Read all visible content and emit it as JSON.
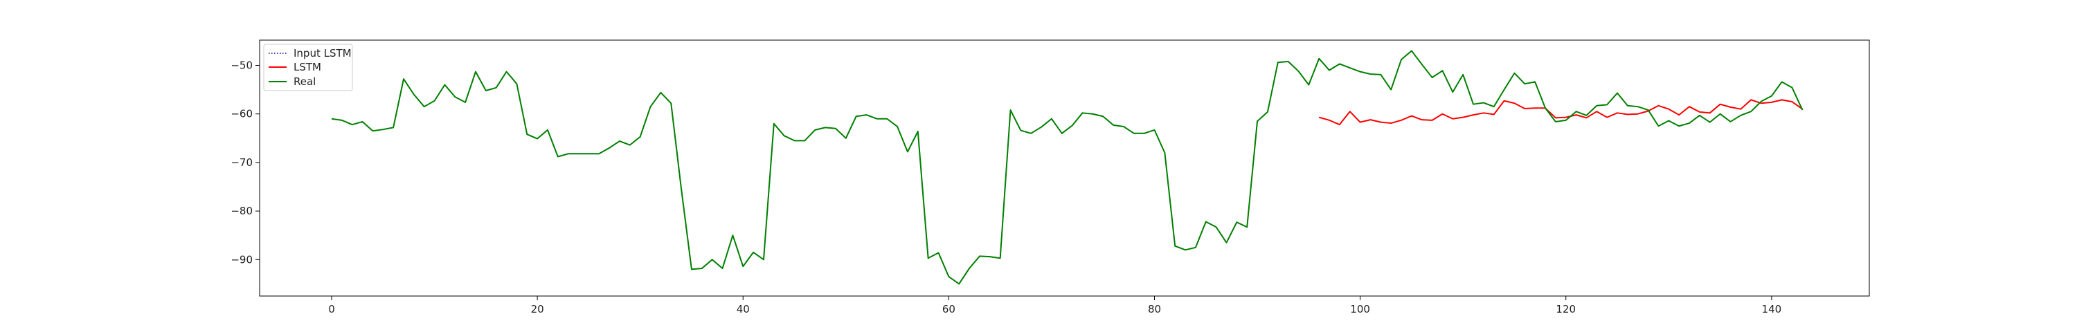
{
  "chart_data": {
    "type": "line",
    "title": "",
    "xlabel": "",
    "ylabel": "",
    "xlim": [
      -7,
      149.5
    ],
    "ylim": [
      -97.5,
      -44.8
    ],
    "xticks": [
      0,
      20,
      40,
      60,
      80,
      100,
      120,
      140
    ],
    "yticks": [
      -50,
      -60,
      -70,
      -80,
      -90
    ],
    "legend_position": "top-left",
    "grid": false,
    "series": [
      {
        "name": "Input LSTM",
        "color": "#00008b",
        "style": "dotted",
        "x_start": 0,
        "values": [
          -61,
          -61.3,
          -62.2,
          -61.6,
          -63.5,
          -63.2,
          -62.8,
          -52.8,
          -56,
          -58.5,
          -57.3,
          -54,
          -56.5,
          -57.6,
          -51.3,
          -55.2,
          -54.6,
          -51.3,
          -53.8,
          -64.2,
          -65.1,
          -63.3,
          -68.8,
          -68.2,
          -68.2,
          -68.2,
          -68.2,
          -67,
          -65.6,
          -66.4,
          -64.7,
          -58.5,
          -55.6,
          -57.8,
          -75.5,
          -92,
          -91.8,
          -90,
          -91.8,
          -85,
          -91.4,
          -88.5,
          -90,
          -62,
          -64.5,
          -65.5,
          -65.5,
          -63.3,
          -62.8,
          -63,
          -65,
          -60.5,
          -60.2,
          -61,
          -61,
          -62.6,
          -67.8,
          -63.6,
          -89.7,
          -88.6,
          -93.5,
          -95,
          -91.8,
          -89.3,
          -89.4,
          -89.7,
          -59.2,
          -63.4,
          -64,
          -62.7,
          -61,
          -64,
          -62.4,
          -59.8,
          -60,
          -60.5,
          -62.3,
          -62.6,
          -64,
          -64,
          -63.3,
          -68,
          -87.2,
          -88,
          -87.5,
          -82.2,
          -83.3,
          -86.5,
          -82.3,
          -83.3,
          -61.5,
          -59.6,
          -49.4,
          -49.2,
          -51.2,
          -54,
          -48.6
        ]
      },
      {
        "name": "LSTM",
        "color": "#ff0000",
        "style": "solid",
        "x_start": 96,
        "values": [
          -60.7,
          -61.3,
          -62.2,
          -59.5,
          -61.7,
          -61.2,
          -61.7,
          -61.9,
          -61.3,
          -60.4,
          -61.2,
          -61.3,
          -60,
          -61,
          -60.7,
          -60.2,
          -59.8,
          -60.1,
          -57.3,
          -57.8,
          -58.9,
          -58.8,
          -58.8,
          -60.8,
          -60.7,
          -60.2,
          -60.8,
          -59.5,
          -60.7,
          -59.8,
          -60.1,
          -60,
          -59.4,
          -58.3,
          -59,
          -60.2,
          -58.5,
          -59.6,
          -59.8,
          -58,
          -58.6,
          -59,
          -57.1,
          -57.8,
          -57.6,
          -57.1,
          -57.5,
          -59
        ]
      },
      {
        "name": "Real",
        "color": "#008000",
        "style": "solid",
        "x_start": 0,
        "values": [
          -61,
          -61.3,
          -62.2,
          -61.6,
          -63.5,
          -63.2,
          -62.8,
          -52.8,
          -56,
          -58.5,
          -57.3,
          -54,
          -56.5,
          -57.6,
          -51.3,
          -55.2,
          -54.6,
          -51.3,
          -53.8,
          -64.2,
          -65.1,
          -63.3,
          -68.8,
          -68.2,
          -68.2,
          -68.2,
          -68.2,
          -67,
          -65.6,
          -66.4,
          -64.7,
          -58.5,
          -55.6,
          -57.8,
          -75.5,
          -92,
          -91.8,
          -90,
          -91.8,
          -85,
          -91.4,
          -88.5,
          -90,
          -62,
          -64.5,
          -65.5,
          -65.5,
          -63.3,
          -62.8,
          -63,
          -65,
          -60.5,
          -60.2,
          -61,
          -61,
          -62.6,
          -67.8,
          -63.6,
          -89.7,
          -88.6,
          -93.5,
          -95,
          -91.8,
          -89.3,
          -89.4,
          -89.7,
          -59.2,
          -63.4,
          -64,
          -62.7,
          -61,
          -64,
          -62.4,
          -59.8,
          -60,
          -60.5,
          -62.3,
          -62.6,
          -64,
          -64,
          -63.3,
          -68,
          -87.2,
          -88,
          -87.5,
          -82.2,
          -83.3,
          -86.5,
          -82.3,
          -83.3,
          -61.5,
          -59.6,
          -49.4,
          -49.2,
          -51.2,
          -54,
          -48.6,
          -51,
          -49.7,
          -50.5,
          -51.3,
          -51.8,
          -51.9,
          -55,
          -48.8,
          -47,
          -49.8,
          -52.5,
          -51.1,
          -55.5,
          -51.9,
          -58,
          -57.7,
          -58.5,
          -55,
          -51.6,
          -53.8,
          -53.4,
          -58.8,
          -61.6,
          -61.3,
          -59.5,
          -60.3,
          -58.3,
          -58.1,
          -55.7,
          -58.3,
          -58.5,
          -59.2,
          -62.5,
          -61.4,
          -62.5,
          -61.9,
          -60.3,
          -61.7,
          -60,
          -61.6,
          -60.3,
          -59.5,
          -57.4,
          -56.3,
          -53.4,
          -54.6,
          -59.2
        ]
      }
    ]
  }
}
